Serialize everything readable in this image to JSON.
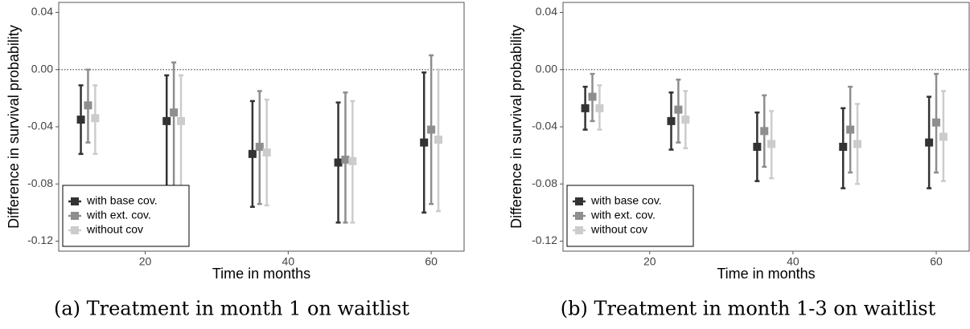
{
  "chart_data": [
    {
      "type": "errorbar",
      "caption": "(a) Treatment in month 1 on waitlist",
      "xlabel": "Time in months",
      "ylabel": "Difference in survival probability",
      "xlim": [
        7.9,
        64.6
      ],
      "xticks": [
        20,
        40,
        60
      ],
      "ylim": [
        -0.127,
        0.047
      ],
      "yticks": [
        0.04,
        {
          "value": 0,
          "label": "0.00"
        },
        -0.04,
        -0.08,
        -0.12
      ],
      "reference_line": 0,
      "legend": "bottom left",
      "series": [
        {
          "name": "with base cov.",
          "color": "#333333",
          "x": [
            11,
            23,
            35,
            47,
            59
          ],
          "values": [
            -0.035,
            -0.036,
            -0.059,
            -0.065,
            -0.051
          ],
          "lower": [
            -0.059,
            -0.085,
            -0.096,
            -0.107,
            -0.1
          ],
          "upper": [
            -0.011,
            -0.004,
            -0.022,
            -0.023,
            -0.002
          ]
        },
        {
          "name": "with ext. cov.",
          "color": "#8e8e8e",
          "x": [
            12,
            24,
            36,
            48,
            60
          ],
          "values": [
            -0.025,
            -0.03,
            -0.054,
            -0.063,
            -0.042
          ],
          "lower": [
            -0.051,
            -0.083,
            -0.094,
            -0.107,
            -0.094
          ],
          "upper": [
            0.0,
            0.005,
            -0.015,
            -0.016,
            0.01
          ]
        },
        {
          "name": "without cov",
          "color": "#cccccc",
          "x": [
            13,
            25,
            37,
            49,
            61
          ],
          "values": [
            -0.034,
            -0.036,
            -0.058,
            -0.064,
            -0.049
          ],
          "lower": [
            -0.059,
            -0.084,
            -0.095,
            -0.107,
            -0.099
          ],
          "upper": [
            -0.011,
            -0.004,
            -0.021,
            -0.022,
            0.0
          ]
        }
      ]
    },
    {
      "type": "errorbar",
      "caption": "(b) Treatment in month 1-3 on waitlist",
      "xlabel": "Time in months",
      "ylabel": "Difference in survival probability",
      "xlim": [
        7.9,
        64.6
      ],
      "xticks": [
        20,
        40,
        60
      ],
      "ylim": [
        -0.127,
        0.047
      ],
      "yticks": [
        0.04,
        {
          "value": 0,
          "label": "0.00"
        },
        -0.04,
        -0.08,
        -0.12
      ],
      "reference_line": 0,
      "legend": "bottom left",
      "series": [
        {
          "name": "with base cov.",
          "color": "#333333",
          "x": [
            11,
            23,
            35,
            47,
            59
          ],
          "values": [
            -0.027,
            -0.036,
            -0.054,
            -0.054,
            -0.051
          ],
          "lower": [
            -0.042,
            -0.056,
            -0.078,
            -0.083,
            -0.083
          ],
          "upper": [
            -0.012,
            -0.016,
            -0.03,
            -0.027,
            -0.019
          ]
        },
        {
          "name": "with ext. cov.",
          "color": "#8e8e8e",
          "x": [
            12,
            24,
            36,
            48,
            60
          ],
          "values": [
            -0.019,
            -0.028,
            -0.043,
            -0.042,
            -0.037
          ],
          "lower": [
            -0.036,
            -0.051,
            -0.068,
            -0.072,
            -0.072
          ],
          "upper": [
            -0.003,
            -0.007,
            -0.018,
            -0.012,
            -0.003
          ]
        },
        {
          "name": "without cov",
          "color": "#cccccc",
          "x": [
            13,
            25,
            37,
            49,
            61
          ],
          "values": [
            -0.027,
            -0.035,
            -0.052,
            -0.052,
            -0.047
          ],
          "lower": [
            -0.042,
            -0.055,
            -0.076,
            -0.08,
            -0.078
          ],
          "upper": [
            -0.011,
            -0.015,
            -0.029,
            -0.024,
            -0.015
          ]
        }
      ]
    }
  ]
}
